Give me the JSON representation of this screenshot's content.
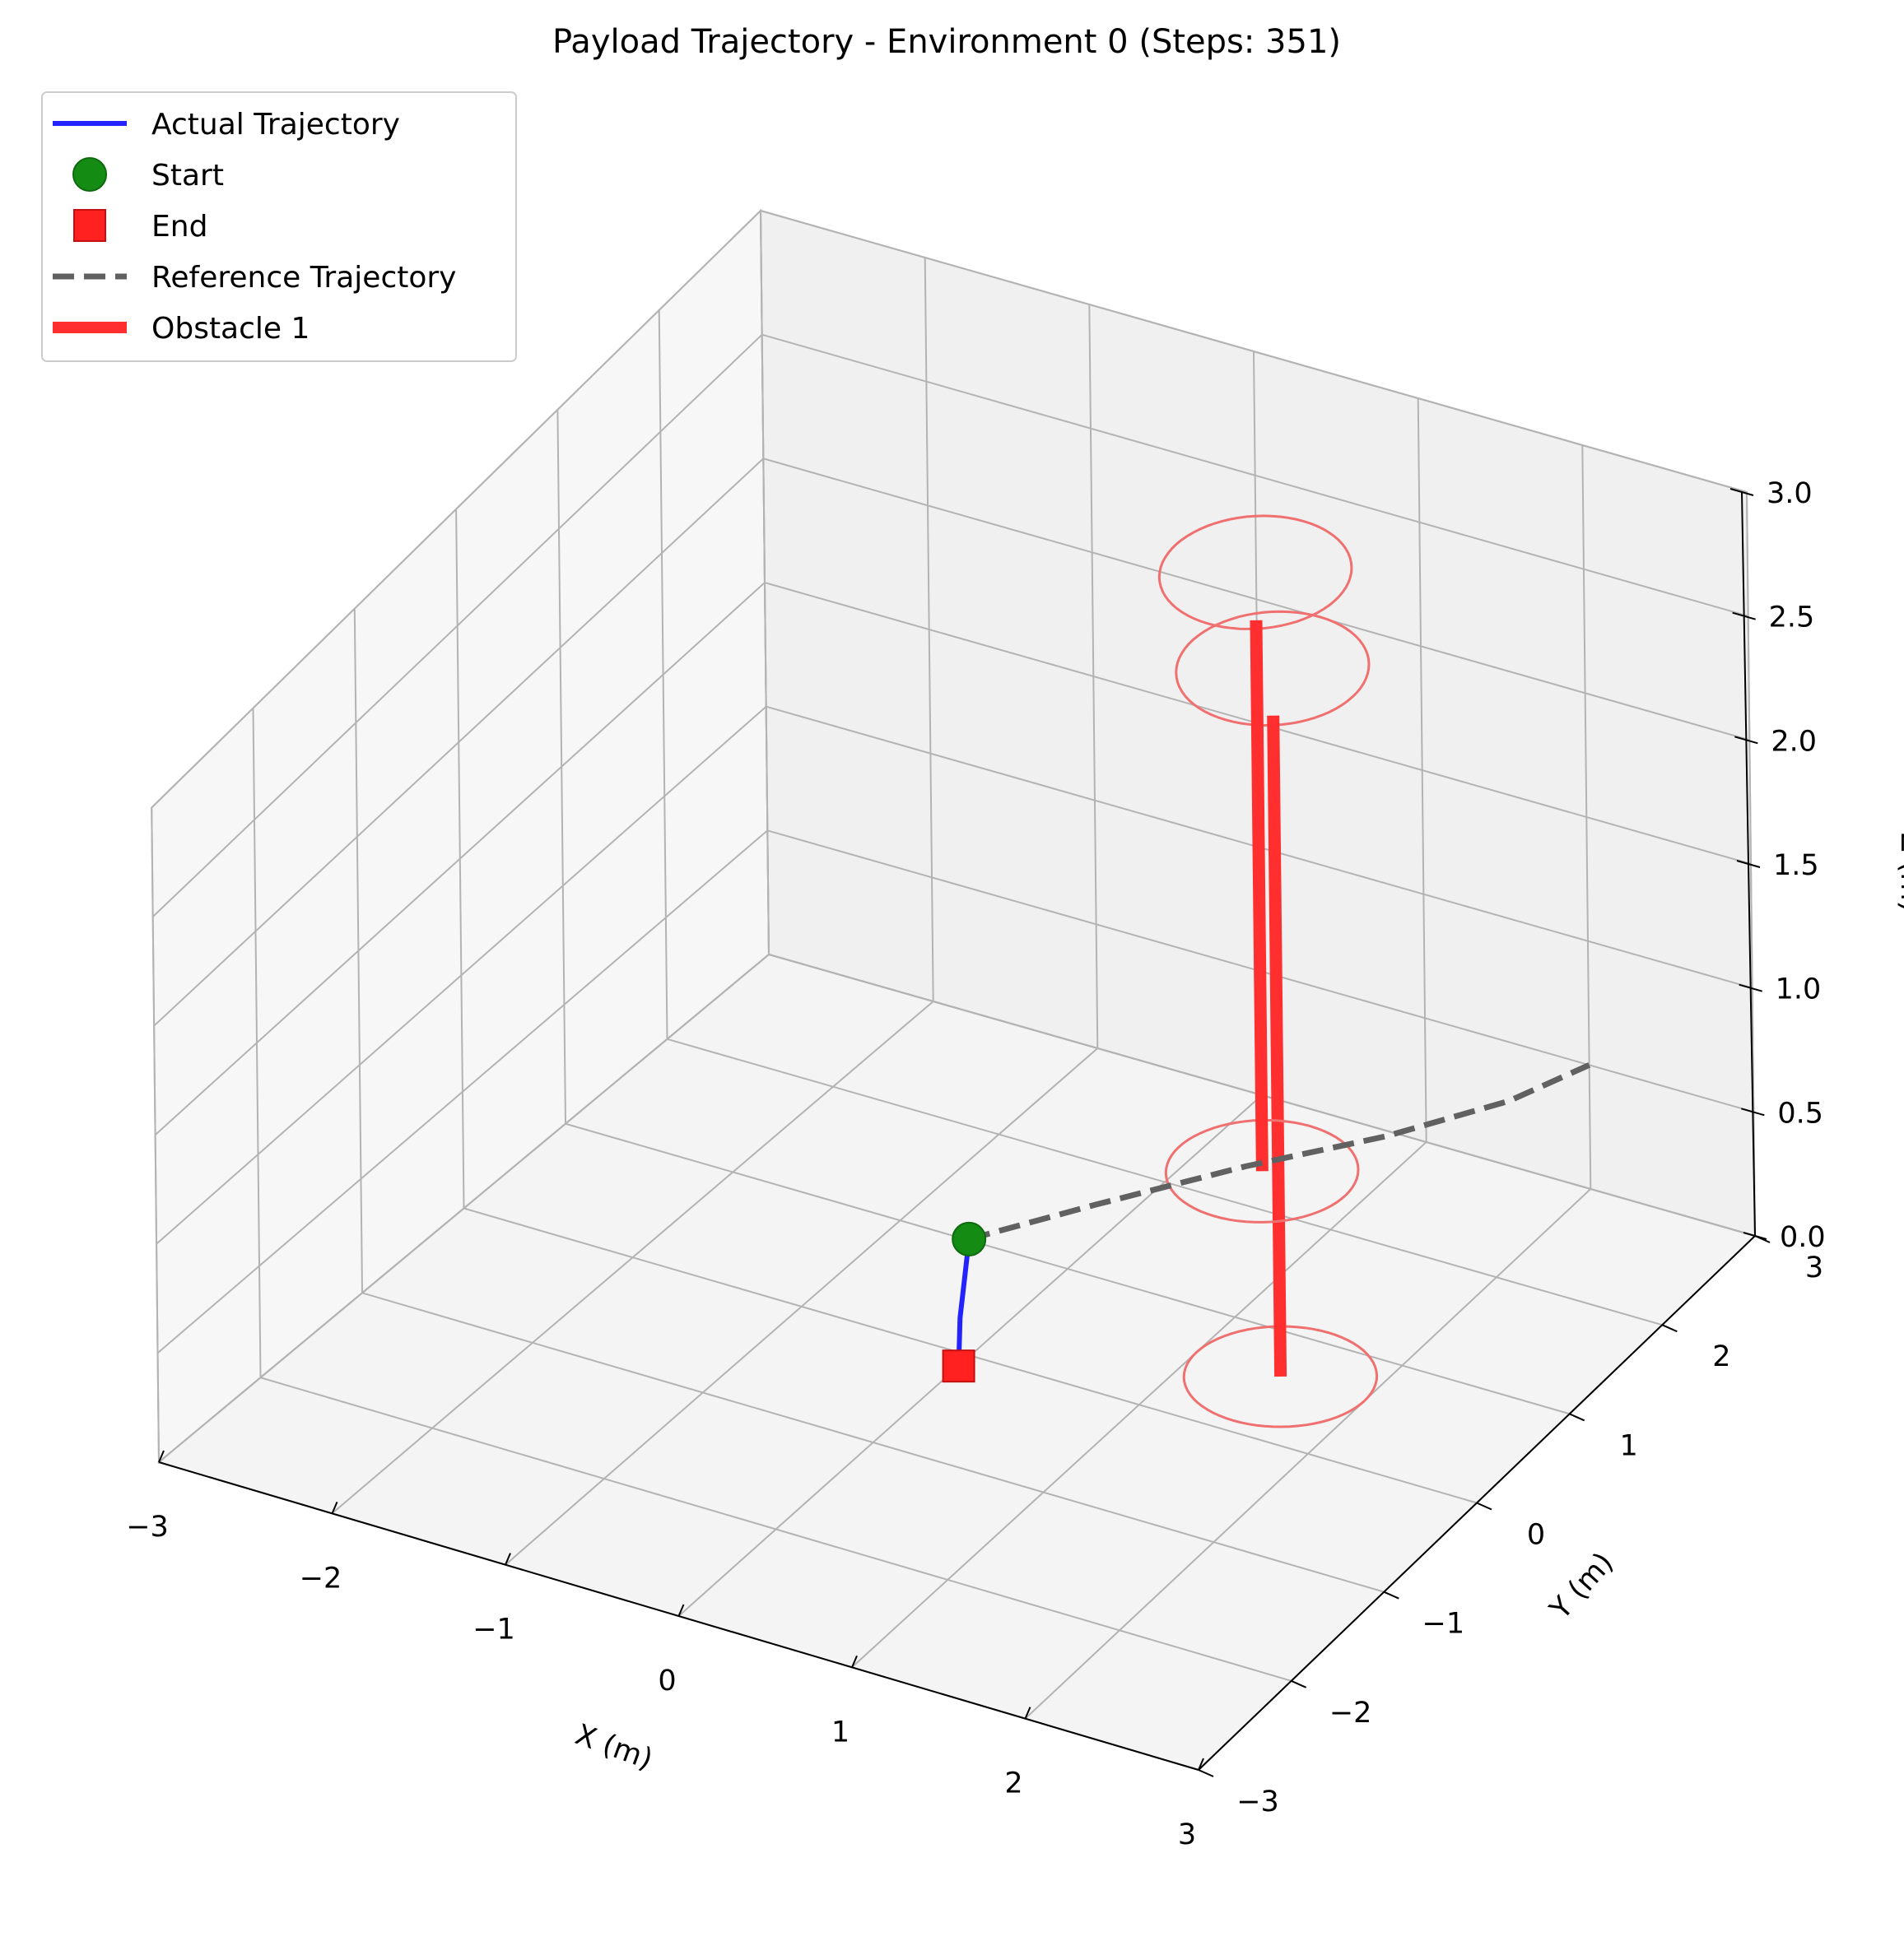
{
  "chart_data": {
    "type": "line3d",
    "title": "Payload Trajectory - Environment 0 (Steps: 351)",
    "xlabel": "X (m)",
    "ylabel": "Y (m)",
    "zlabel": "Z (m)",
    "xlim": [
      -3,
      3
    ],
    "ylim": [
      -3,
      3
    ],
    "zlim": [
      0,
      3
    ],
    "x_ticks": [
      "−3",
      "−2",
      "−1",
      "0",
      "1",
      "2",
      "3"
    ],
    "y_ticks": [
      "−3",
      "−2",
      "−1",
      "0",
      "1",
      "2",
      "3"
    ],
    "z_ticks": [
      "0.0",
      "0.5",
      "1.0",
      "1.5",
      "2.0",
      "2.5",
      "3.0"
    ],
    "grid": true,
    "legend_position": "top-left",
    "legend": [
      {
        "label": "Actual Trajectory",
        "style": "line",
        "color": "#2323ff"
      },
      {
        "label": "Start",
        "style": "circle",
        "color": "#148c14"
      },
      {
        "label": "End",
        "style": "square",
        "color": "#ff2020"
      },
      {
        "label": "Reference Trajectory",
        "style": "dashed",
        "color": "#616161"
      },
      {
        "label": "Obstacle 1",
        "style": "thick-line",
        "color": "#ff2f2f"
      }
    ],
    "series": [
      {
        "name": "Actual Trajectory",
        "color": "#2323ff",
        "points": [
          [
            0.0,
            0.0,
            0.5
          ],
          [
            0.0,
            -0.05,
            0.35
          ],
          [
            0.0,
            -0.1,
            0.2
          ],
          [
            0.0,
            -0.12,
            0.0
          ]
        ]
      },
      {
        "name": "Reference Trajectory",
        "color": "#616161",
        "points": [
          [
            0.0,
            0.0,
            0.5
          ],
          [
            0.4,
            0.6,
            0.5
          ],
          [
            0.9,
            1.3,
            0.5
          ],
          [
            1.4,
            1.9,
            0.5
          ],
          [
            1.8,
            2.5,
            0.5
          ],
          [
            2.0,
            3.0,
            0.5
          ]
        ]
      }
    ],
    "markers": [
      {
        "name": "Start",
        "color": "#148c14",
        "point": [
          0.0,
          0.0,
          0.5
        ]
      },
      {
        "name": "End",
        "color": "#ff2020",
        "point": [
          0.0,
          -0.12,
          0.0
        ]
      }
    ],
    "obstacles": [
      {
        "name": "Obstacle 1",
        "color": "#ff2f2f",
        "ring_color": "#f07070",
        "x": 1.5,
        "y": 0.6,
        "z_range": [
          0.0,
          3.0
        ],
        "radius": 0.5
      },
      {
        "name": "Obstacle 1",
        "color": "#ff2f2f",
        "ring_color": "#f07070",
        "x": 1.0,
        "y": 1.3,
        "z_range": [
          0.5,
          3.0
        ],
        "radius": 0.5
      }
    ]
  }
}
